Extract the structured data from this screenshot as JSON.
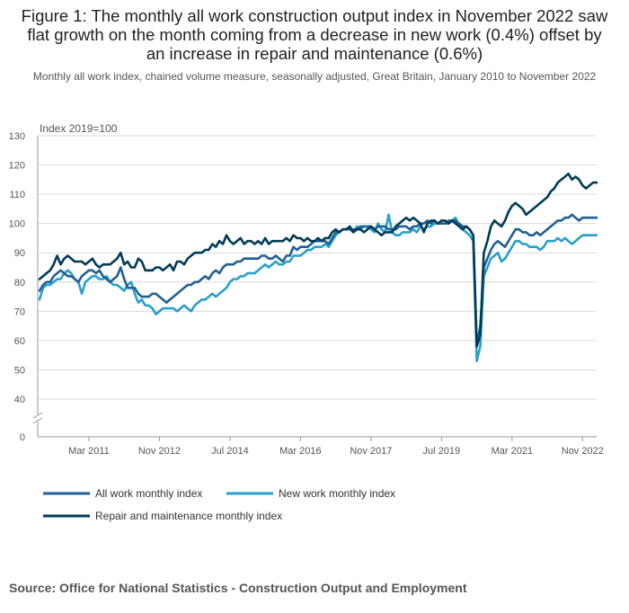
{
  "title": "Figure 1: The monthly all work construction output index in November 2022 saw flat growth on the month coming from a decrease in new work (0.4%) offset by an increase in repair and maintenance (0.6%)",
  "subtitle": "Monthly all work index, chained volume measure, seasonally adjusted, Great Britain, January 2010 to November 2022",
  "source": "Source: Office for National Statistics - Construction Output and Employment",
  "colors": {
    "all_work": "#206095",
    "new_work": "#27a0cc",
    "repair": "#003c57",
    "grid": "#d9d9d9",
    "axis": "#999999",
    "tick_text": "#555555"
  },
  "chart_data": {
    "type": "line",
    "title": "Figure 1: The monthly all work construction output index in November 2022 saw flat growth on the month coming from a decrease in new work (0.4%) offset by an increase in repair and maintenance (0.6%)",
    "subtitle": "Monthly all work index, chained volume measure, seasonally adjusted, Great Britain, January 2010 to November 2022",
    "ylabel": "Index 2019=100",
    "xlabel": "",
    "ylim": [
      0,
      130
    ],
    "y_axis_break": true,
    "y_ticks": [
      "0",
      "40",
      "50",
      "60",
      "70",
      "80",
      "90",
      "100",
      "110",
      "120",
      "130"
    ],
    "x_ticks": [
      "Mar 2011",
      "Nov 2012",
      "Jul 2014",
      "Mar 2016",
      "Nov 2017",
      "Jul 2019",
      "Mar 2021",
      "Nov 2022"
    ],
    "x_start": "Jan 2010",
    "x_end": "Nov 2022",
    "grid": true,
    "legend_position": "bottom",
    "series": [
      {
        "name": "All work monthly index",
        "color": "#206095",
        "values": [
          77,
          79,
          80,
          80,
          82,
          83,
          84,
          83,
          82,
          82,
          81,
          80,
          82,
          83,
          84,
          84,
          83,
          84,
          82,
          81,
          80,
          81,
          82,
          85,
          81,
          78,
          78,
          78,
          76,
          75,
          75,
          75,
          76,
          76,
          75,
          74,
          73,
          74,
          75,
          76,
          77,
          78,
          79,
          79,
          80,
          80,
          81,
          82,
          81,
          83,
          84,
          83,
          85,
          86,
          86,
          86,
          87,
          87,
          88,
          88,
          88,
          88,
          88,
          89,
          89,
          88,
          88,
          89,
          88,
          87,
          89,
          89,
          92,
          91,
          92,
          92,
          92,
          93,
          94,
          94,
          94,
          94,
          93,
          95,
          97,
          97,
          98,
          98,
          98,
          98,
          98,
          99,
          99,
          99,
          99,
          98,
          99,
          99,
          99,
          98,
          98,
          98,
          99,
          99,
          99,
          98,
          99,
          99,
          100,
          100,
          101,
          100,
          101,
          100,
          100,
          100,
          101,
          101,
          101,
          100,
          99,
          99,
          98,
          96,
          58,
          65,
          85,
          88,
          91,
          93,
          94,
          93,
          92,
          94,
          96,
          98,
          98,
          97,
          97,
          96,
          96,
          97,
          96,
          97,
          98,
          99,
          100,
          101,
          101,
          102,
          102,
          103,
          102,
          101,
          102,
          102,
          102,
          102,
          102
        ],
        "note_last": 102
      },
      {
        "name": "New work monthly index",
        "color": "#27a0cc",
        "values": [
          74,
          78,
          79,
          79,
          80,
          81,
          81,
          83,
          84,
          83,
          81,
          80,
          76,
          80,
          81,
          82,
          82,
          81,
          81,
          82,
          80,
          79,
          79,
          78,
          77,
          79,
          80,
          76,
          73,
          74,
          72,
          72,
          71,
          69,
          70,
          71,
          71,
          71,
          71,
          70,
          71,
          72,
          71,
          70,
          72,
          73,
          74,
          74,
          75,
          76,
          75,
          76,
          77,
          78,
          80,
          81,
          81,
          82,
          82,
          83,
          83,
          83,
          84,
          85,
          86,
          85,
          86,
          87,
          86,
          86,
          87,
          87,
          89,
          89,
          89,
          90,
          91,
          91,
          92,
          92,
          92,
          93,
          92,
          94,
          96,
          97,
          98,
          98,
          98,
          97,
          99,
          98,
          99,
          99,
          98,
          97,
          100,
          98,
          97,
          103,
          97,
          96,
          96,
          97,
          97,
          97,
          98,
          97,
          99,
          98,
          99,
          99,
          100,
          100,
          100,
          100,
          100,
          101,
          102,
          99,
          98,
          97,
          96,
          94,
          53,
          58,
          82,
          85,
          88,
          89,
          90,
          87,
          88,
          90,
          92,
          94,
          94,
          93,
          93,
          92,
          92,
          92,
          91,
          92,
          94,
          94,
          94,
          95,
          94,
          95,
          94,
          93,
          94,
          95,
          96,
          96,
          96,
          96,
          96
        ],
        "note_last": 96
      },
      {
        "name": "Repair and maintenance monthly index",
        "color": "#003c57",
        "values": [
          81,
          82,
          83,
          84,
          86,
          89,
          86,
          88,
          89,
          88,
          87,
          87,
          87,
          86,
          87,
          88,
          86,
          85,
          86,
          86,
          86,
          87,
          88,
          90,
          86,
          87,
          85,
          85,
          88,
          87,
          84,
          84,
          84,
          85,
          85,
          84,
          85,
          86,
          84,
          87,
          87,
          86,
          88,
          89,
          90,
          90,
          90,
          91,
          91,
          93,
          92,
          94,
          93,
          96,
          94,
          93,
          94,
          95,
          93,
          94,
          94,
          93,
          94,
          93,
          95,
          93,
          94,
          94,
          94,
          94,
          95,
          94,
          96,
          95,
          95,
          94,
          95,
          94,
          94,
          95,
          94,
          95,
          95,
          97,
          98,
          97,
          98,
          98,
          99,
          97,
          98,
          98,
          97,
          98,
          99,
          98,
          97,
          96,
          97,
          97,
          97,
          99,
          100,
          101,
          102,
          101,
          102,
          101,
          100,
          97,
          100,
          101,
          101,
          100,
          101,
          101,
          100,
          101,
          100,
          99,
          98,
          99,
          98,
          96,
          58,
          62,
          90,
          94,
          99,
          101,
          100,
          99,
          101,
          104,
          106,
          107,
          106,
          105,
          103,
          104,
          105,
          106,
          107,
          108,
          109,
          111,
          112,
          114,
          115,
          116,
          117,
          115,
          116,
          115,
          113,
          112,
          113,
          114,
          114
        ],
        "note_last": 114
      }
    ]
  }
}
